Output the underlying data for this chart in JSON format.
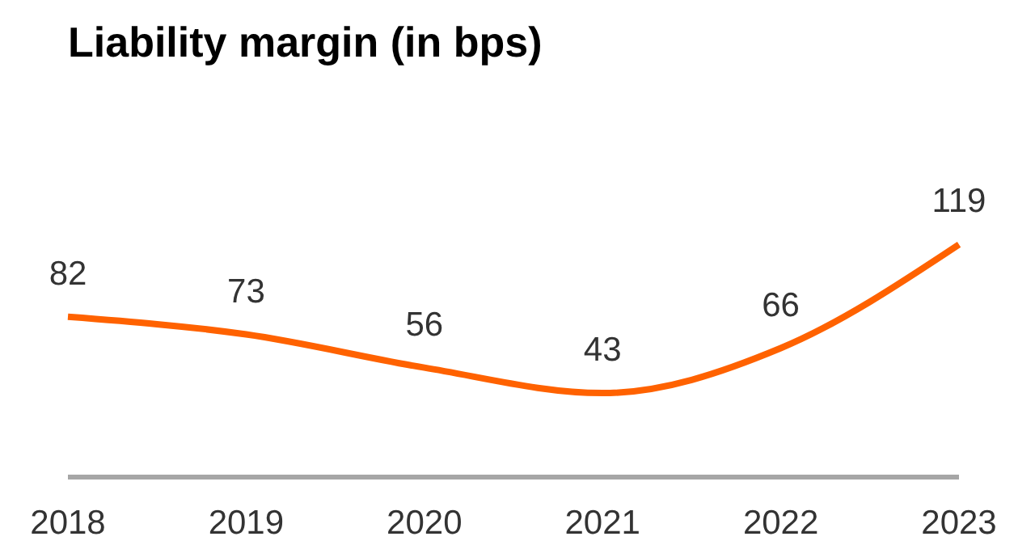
{
  "chart_data": {
    "type": "line",
    "title": "Liability margin (in bps)",
    "categories": [
      "2018",
      "2019",
      "2020",
      "2021",
      "2022",
      "2023"
    ],
    "series": [
      {
        "color": "#ff6200",
        "values": [
          82,
          73,
          56,
          43,
          66,
          119
        ]
      }
    ],
    "tick_labels": "x",
    "data_labels": true,
    "marker": "none"
  }
}
